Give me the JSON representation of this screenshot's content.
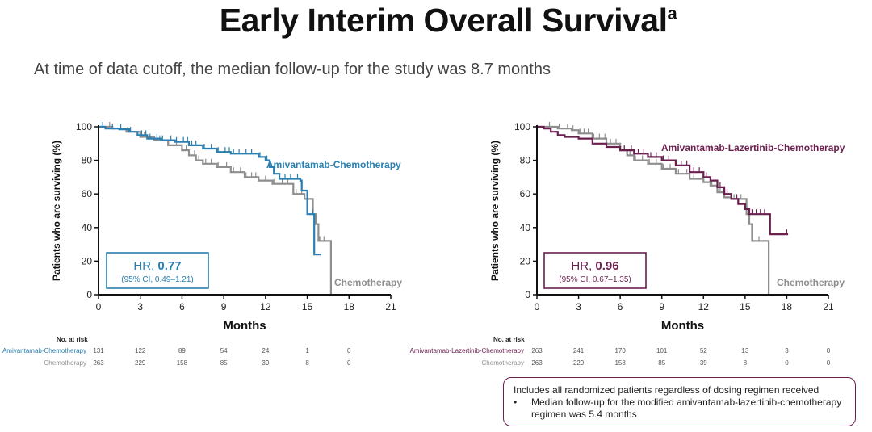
{
  "page": {
    "title": "Early Interim Overall Survival",
    "title_superscript": "a",
    "subtitle": "At time of data cutoff, the median follow-up for the study was 8.7 months"
  },
  "colors": {
    "amivantamab_chemo": "#2a7fb0",
    "amivantamab_laz_chemo": "#6b1f4f",
    "chemotherapy": "#8e8e8e"
  },
  "footnote": {
    "line1": "Includes all randomized patients regardless of dosing regimen received",
    "bullet_symbol": "•",
    "bullet_text": "Median follow-up for the modified amivantamab-lazertinib-chemotherapy regimen was 5.4 months"
  },
  "chart_data": [
    {
      "type": "line",
      "subtype": "kaplan-meier",
      "title": "",
      "xlabel": "Months",
      "ylabel": "Patients who are surviving (%)",
      "xlim": [
        0,
        21
      ],
      "ylim": [
        0,
        100
      ],
      "xticks": [
        "0",
        "3",
        "6",
        "9",
        "12",
        "15",
        "18",
        "21"
      ],
      "yticks": [
        "0",
        "20",
        "40",
        "60",
        "80",
        "100"
      ],
      "grid": false,
      "hr_box": {
        "label": "HR, ",
        "value": "0.77",
        "ci": "(95% CI, 0.49–1.21)",
        "color": "#2a7fb0"
      },
      "series": [
        {
          "name": "Amivantamab-Chemotherapy",
          "color": "#2a7fb0",
          "label_position": "upper-right",
          "steps": [
            [
              0,
              100
            ],
            [
              0.5,
              99
            ],
            [
              1.5,
              98.5
            ],
            [
              2.2,
              97
            ],
            [
              2.8,
              95
            ],
            [
              3.5,
              93
            ],
            [
              4.5,
              92
            ],
            [
              5.5,
              91
            ],
            [
              6.5,
              89
            ],
            [
              7.5,
              87
            ],
            [
              8.5,
              85
            ],
            [
              9.5,
              84
            ],
            [
              11.5,
              82
            ],
            [
              12,
              80
            ],
            [
              12.3,
              76
            ],
            [
              12.6,
              72
            ],
            [
              13,
              69
            ],
            [
              14,
              69
            ],
            [
              14.5,
              68
            ],
            [
              14.6,
              62
            ],
            [
              15,
              56
            ],
            [
              15,
              48
            ],
            [
              15.5,
              48
            ],
            [
              15.5,
              24
            ],
            [
              16,
              24
            ]
          ],
          "censor_times": [
            0.3,
            1,
            1.6,
            2.3,
            3.1,
            3.4,
            3.7,
            4.2,
            4.6,
            5.2,
            5.6,
            6.1,
            6.4,
            6.7,
            7,
            7.6,
            8.1,
            8.6,
            9.1,
            9.4,
            9.7,
            10.1,
            10.6,
            11,
            11.6,
            12.1,
            13,
            13.4,
            13.8,
            14.3,
            15.4
          ]
        },
        {
          "name": "Chemotherapy",
          "color": "#8e8e8e",
          "label_position": "bottom-right",
          "steps": [
            [
              0,
              100
            ],
            [
              1,
              99
            ],
            [
              2,
              97
            ],
            [
              3,
              94
            ],
            [
              4,
              92
            ],
            [
              5,
              89
            ],
            [
              6,
              86
            ],
            [
              6.5,
              83
            ],
            [
              7,
              80
            ],
            [
              7.5,
              78
            ],
            [
              8.5,
              76
            ],
            [
              9.5,
              73
            ],
            [
              10.5,
              70
            ],
            [
              11.5,
              68
            ],
            [
              12.5,
              66
            ],
            [
              13.5,
              66
            ],
            [
              14,
              60
            ],
            [
              14.8,
              57
            ],
            [
              15.3,
              57
            ],
            [
              15.4,
              48
            ],
            [
              15.6,
              42
            ],
            [
              15.8,
              32
            ],
            [
              16.7,
              32
            ],
            [
              16.7,
              0
            ]
          ],
          "censor_times": [
            0.8,
            2.1,
            3.3,
            4.4,
            5.6,
            6.3,
            6.9,
            7.2,
            7.7,
            8.1,
            8.6,
            9.2,
            9.7,
            10.2,
            10.6,
            11,
            11.3,
            12,
            12.6,
            13.2,
            13.6,
            14.2,
            14.6,
            15,
            15.9,
            16.2
          ]
        }
      ],
      "risk_table": {
        "header": "No. at risk",
        "times": [
          0,
          3,
          6,
          9,
          12,
          15,
          18
        ],
        "rows": [
          {
            "label": "Amivantamab-Chemotherapy",
            "color": "#2a7fb0",
            "values": [
              "131",
              "122",
              "89",
              "54",
              "24",
              "1",
              "0"
            ]
          },
          {
            "label": "Chemotherapy",
            "color": "#8e8e8e",
            "values": [
              "263",
              "229",
              "158",
              "85",
              "39",
              "8",
              "0"
            ]
          }
        ]
      }
    },
    {
      "type": "line",
      "subtype": "kaplan-meier",
      "title": "",
      "xlabel": "Months",
      "ylabel": "Patients who are surviving (%)",
      "xlim": [
        0,
        21
      ],
      "ylim": [
        0,
        100
      ],
      "xticks": [
        "0",
        "3",
        "6",
        "9",
        "12",
        "15",
        "18",
        "21"
      ],
      "yticks": [
        "0",
        "20",
        "40",
        "60",
        "80",
        "100"
      ],
      "grid": false,
      "hr_box": {
        "label": "HR, ",
        "value": "0.96",
        "ci": "(95% CI, 0.67–1.35)",
        "color": "#6b1f4f"
      },
      "series": [
        {
          "name": "Amivantamab-Lazertinib-Chemotherapy",
          "color": "#6b1f4f",
          "label_position": "upper-right",
          "steps": [
            [
              0,
              100
            ],
            [
              0.5,
              99
            ],
            [
              1,
              97
            ],
            [
              1.5,
              95
            ],
            [
              2,
              94
            ],
            [
              3,
              93
            ],
            [
              4,
              90
            ],
            [
              5,
              88
            ],
            [
              6,
              86
            ],
            [
              7,
              84
            ],
            [
              8,
              82
            ],
            [
              9,
              80
            ],
            [
              10,
              77
            ],
            [
              11,
              73
            ],
            [
              12,
              70
            ],
            [
              12.5,
              68
            ],
            [
              13,
              64
            ],
            [
              13.5,
              60
            ],
            [
              14,
              57
            ],
            [
              14.5,
              54
            ],
            [
              15,
              51
            ],
            [
              15.3,
              48
            ],
            [
              16.8,
              48
            ],
            [
              16.8,
              36
            ],
            [
              18.1,
              36
            ]
          ],
          "censor_times": [
            6.3,
            6.8,
            7.3,
            7.7,
            8.2,
            8.6,
            9.1,
            9.5,
            10,
            10.4,
            10.8,
            11.3,
            11.7,
            12.2,
            13.2,
            13.7,
            14.4,
            15.5,
            15.8,
            16.1,
            16.4,
            18
          ]
        },
        {
          "name": "Chemotherapy",
          "color": "#8e8e8e",
          "label_position": "bottom-right",
          "steps": [
            [
              0,
              100
            ],
            [
              1.5,
              99
            ],
            [
              2.5,
              98
            ],
            [
              3,
              96
            ],
            [
              4,
              93
            ],
            [
              5,
              90
            ],
            [
              6,
              86
            ],
            [
              6.5,
              83
            ],
            [
              7,
              80
            ],
            [
              8,
              78
            ],
            [
              9,
              75
            ],
            [
              10,
              72
            ],
            [
              11,
              69
            ],
            [
              12,
              67
            ],
            [
              12.5,
              65
            ],
            [
              13,
              61
            ],
            [
              13.5,
              58
            ],
            [
              14,
              57
            ],
            [
              15,
              57
            ],
            [
              15.1,
              48
            ],
            [
              15.3,
              42
            ],
            [
              15.5,
              32
            ],
            [
              16.7,
              32
            ],
            [
              16.7,
              0
            ]
          ],
          "censor_times": [
            0.9,
            1.6,
            2.2,
            2.6,
            3.1,
            3.4,
            3.7,
            4.1,
            4.5,
            4.9,
            5.3,
            5.7,
            6.2,
            6.7,
            7.1,
            7.6,
            8.1,
            8.6,
            9.1,
            9.6,
            10.2,
            10.8,
            11.3,
            11.9,
            12.6,
            13.2,
            13.7,
            14.2,
            14.7,
            16
          ]
        }
      ],
      "risk_table": {
        "header": "No. at risk",
        "times": [
          0,
          3,
          6,
          9,
          12,
          15,
          18,
          21
        ],
        "rows": [
          {
            "label": "Amivantamab-Lazertinib-Chemotherapy",
            "color": "#6b1f4f",
            "values": [
              "263",
              "241",
              "170",
              "101",
              "52",
              "13",
              "3",
              "0"
            ]
          },
          {
            "label": "Chemotherapy",
            "color": "#8e8e8e",
            "values": [
              "263",
              "229",
              "158",
              "85",
              "39",
              "8",
              "0",
              "0"
            ]
          }
        ]
      }
    }
  ]
}
